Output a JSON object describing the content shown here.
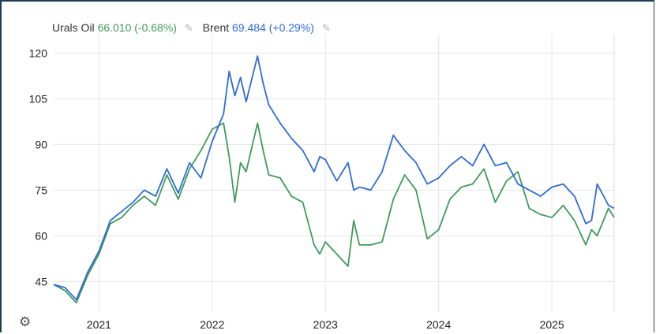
{
  "legend": {
    "series1_name": "Urals Oil",
    "series1_value": "66.010 (-0.68%)",
    "series2_name": "Brent",
    "series2_value": "69.484 (+0.29%)"
  },
  "icons": {
    "edit": "pencil-icon",
    "settings": "gear-icon"
  },
  "colors": {
    "urals": "#3f9b5a",
    "brent": "#2f6bd8",
    "grid": "#e6e6e6"
  },
  "chart_data": {
    "type": "line",
    "title": "",
    "xlabel": "",
    "ylabel": "",
    "xlim": [
      2020.6,
      2025.55
    ],
    "ylim": [
      35,
      125
    ],
    "yticks": [
      45,
      60,
      75,
      90,
      105,
      120
    ],
    "xticks": [
      2021,
      2022,
      2023,
      2024,
      2025
    ],
    "grid": true,
    "legend_position": "top-left",
    "series": [
      {
        "name": "Urals Oil",
        "color": "#3f9b5a",
        "x": [
          2020.6,
          2020.7,
          2020.8,
          2020.9,
          2021.0,
          2021.1,
          2021.2,
          2021.3,
          2021.4,
          2021.5,
          2021.6,
          2021.7,
          2021.8,
          2021.9,
          2022.0,
          2022.1,
          2022.15,
          2022.2,
          2022.25,
          2022.3,
          2022.4,
          2022.45,
          2022.5,
          2022.6,
          2022.7,
          2022.8,
          2022.9,
          2022.95,
          2023.0,
          2023.1,
          2023.2,
          2023.25,
          2023.3,
          2023.4,
          2023.5,
          2023.6,
          2023.7,
          2023.8,
          2023.9,
          2024.0,
          2024.1,
          2024.2,
          2024.3,
          2024.4,
          2024.5,
          2024.6,
          2024.7,
          2024.8,
          2024.9,
          2025.0,
          2025.1,
          2025.2,
          2025.3,
          2025.35,
          2025.4,
          2025.5,
          2025.55
        ],
        "values": [
          44,
          42,
          38,
          47,
          54,
          64,
          66,
          70,
          73,
          70,
          80,
          72,
          82,
          88,
          95,
          97,
          86,
          71,
          84,
          81,
          97,
          88,
          80,
          79,
          73,
          71,
          57,
          54,
          58,
          54,
          50,
          65,
          57,
          57,
          58,
          72,
          80,
          75,
          59,
          62,
          72,
          76,
          77,
          82,
          71,
          78,
          81,
          69,
          67,
          66,
          70,
          65,
          57,
          62,
          60,
          69,
          66
        ]
      },
      {
        "name": "Brent",
        "color": "#2f6bd8",
        "x": [
          2020.6,
          2020.7,
          2020.8,
          2020.9,
          2021.0,
          2021.1,
          2021.2,
          2021.3,
          2021.4,
          2021.5,
          2021.6,
          2021.7,
          2021.8,
          2021.9,
          2022.0,
          2022.1,
          2022.15,
          2022.2,
          2022.25,
          2022.3,
          2022.4,
          2022.45,
          2022.5,
          2022.6,
          2022.7,
          2022.8,
          2022.9,
          2022.95,
          2023.0,
          2023.1,
          2023.2,
          2023.25,
          2023.3,
          2023.4,
          2023.5,
          2023.6,
          2023.7,
          2023.8,
          2023.9,
          2024.0,
          2024.1,
          2024.2,
          2024.3,
          2024.4,
          2024.5,
          2024.6,
          2024.7,
          2024.8,
          2024.9,
          2025.0,
          2025.1,
          2025.2,
          2025.3,
          2025.35,
          2025.4,
          2025.5,
          2025.55
        ],
        "values": [
          44,
          43,
          39,
          48,
          55,
          65,
          68,
          71,
          75,
          73,
          82,
          74,
          84,
          79,
          91,
          100,
          114,
          106,
          112,
          104,
          119,
          110,
          103,
          97,
          92,
          88,
          81,
          86,
          85,
          78,
          84,
          75,
          76,
          75,
          81,
          93,
          88,
          84,
          77,
          79,
          83,
          86,
          83,
          90,
          83,
          84,
          77,
          75,
          73,
          76,
          77,
          73,
          64,
          65,
          77,
          70,
          69
        ]
      }
    ]
  }
}
